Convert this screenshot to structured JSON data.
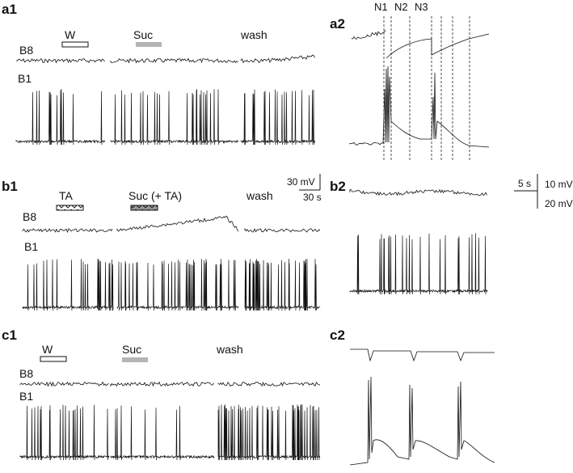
{
  "panels": {
    "a1": {
      "label": "a1",
      "trace_top": "B8",
      "trace_bottom": "B1",
      "conditions": [
        {
          "text": "W",
          "bar": "white"
        },
        {
          "text": "Suc",
          "bar": "gray"
        },
        {
          "text": "wash",
          "bar": "none"
        }
      ]
    },
    "a2": {
      "label": "a2",
      "neurons": [
        "N1",
        "N2",
        "N3"
      ]
    },
    "b1": {
      "label": "b1",
      "trace_top": "B8",
      "trace_bottom": "B1",
      "conditions": [
        {
          "text": "TA",
          "bar": "hatched"
        },
        {
          "text": "Suc (+ TA)",
          "bar": "hatched-dark"
        },
        {
          "text": "wash",
          "bar": "none"
        }
      ]
    },
    "b2": {
      "label": "b2"
    },
    "c1": {
      "label": "c1",
      "trace_top": "B8",
      "trace_bottom": "B1",
      "conditions": [
        {
          "text": "W",
          "bar": "white"
        },
        {
          "text": "Suc",
          "bar": "gray"
        },
        {
          "text": "wash",
          "bar": "none"
        }
      ]
    },
    "c2": {
      "label": "c2"
    }
  },
  "scale_bars": {
    "left": {
      "voltage": "30 mV",
      "time": "30 s"
    },
    "right": {
      "time": "5 s",
      "voltage_top": "10 mV",
      "voltage_bottom": "20 mV"
    }
  },
  "colors": {
    "trace": "#111111",
    "stim_gray": "#b5b5b5"
  }
}
